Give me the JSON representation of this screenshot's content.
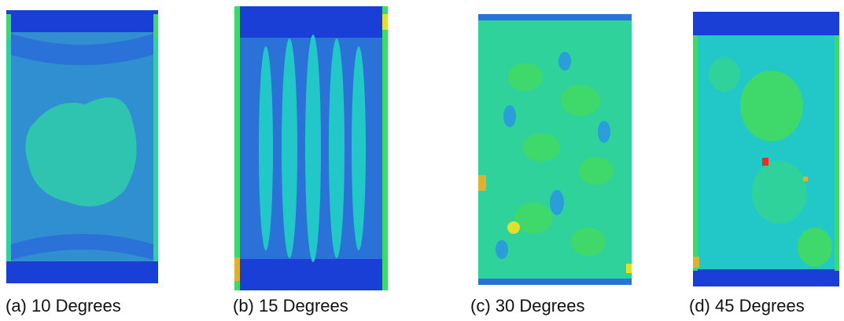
{
  "panels": [
    {
      "caption": "(a) 10 Degrees"
    },
    {
      "caption": "(b) 15 Degrees"
    },
    {
      "caption": "(c) 30 Degrees"
    },
    {
      "caption": "(d) 45 Degrees"
    }
  ],
  "colors": {
    "deep_blue": "#1a3fd6",
    "mid_blue": "#2a72d8",
    "steel_blue": "#2f8fd0",
    "cyan": "#22c8c8",
    "teal_green": "#2fd29a",
    "green": "#3ed96a",
    "yellow": "#e0e030",
    "orange": "#f09020",
    "red": "#e83020"
  }
}
